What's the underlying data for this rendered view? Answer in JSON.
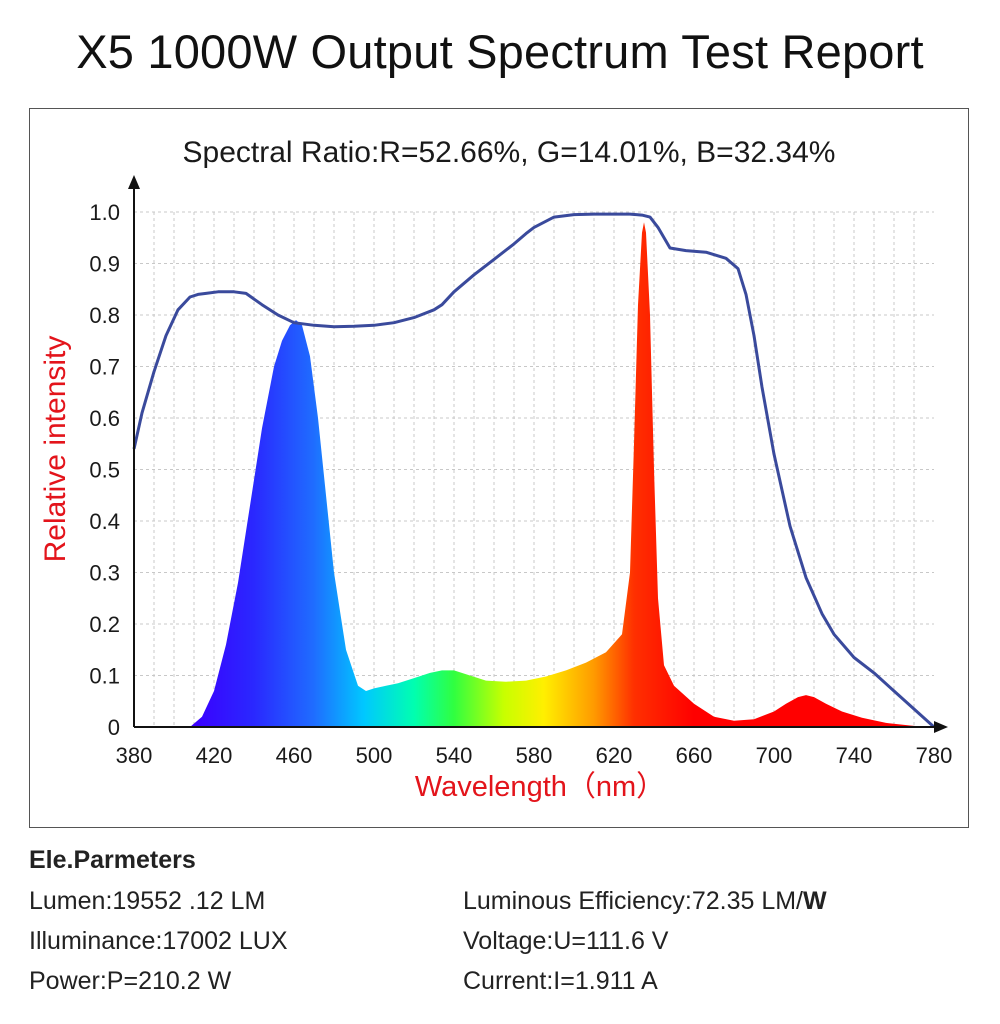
{
  "title": "X5 1000W Output Spectrum Test Report",
  "chart_data": {
    "type": "line",
    "subtitle": "Spectral Ratio:R=52.66%, G=14.01%, B=32.34%",
    "xlabel": "Wavelength（nm）",
    "ylabel": "Relative intensity",
    "xlim": [
      380,
      780
    ],
    "ylim": [
      0,
      1.0
    ],
    "x_ticks": [
      "380",
      "420",
      "460",
      "500",
      "540",
      "580",
      "620",
      "660",
      "700",
      "740",
      "780"
    ],
    "y_ticks": [
      "0",
      "0.1",
      "0.2",
      "0.3",
      "0.4",
      "0.5",
      "0.6",
      "0.7",
      "0.8",
      "0.9",
      "1.0"
    ],
    "grid": true,
    "series": [
      {
        "role": "emission spectrum (filled, rainbow colored)",
        "x": [
          408,
          414,
          420,
          426,
          432,
          438,
          444,
          450,
          454,
          458,
          461,
          464,
          468,
          472,
          476,
          480,
          486,
          492,
          496,
          500,
          506,
          512,
          520,
          528,
          534,
          540,
          548,
          556,
          566,
          576,
          586,
          596,
          606,
          616,
          624,
          628,
          630,
          632,
          634,
          635,
          636,
          638,
          640,
          642,
          645,
          650,
          660,
          670,
          680,
          690,
          700,
          706,
          712,
          716,
          720,
          726,
          734,
          744,
          756,
          768,
          776
        ],
        "y": [
          0.0,
          0.02,
          0.07,
          0.16,
          0.28,
          0.43,
          0.58,
          0.7,
          0.75,
          0.78,
          0.79,
          0.78,
          0.72,
          0.6,
          0.45,
          0.3,
          0.15,
          0.08,
          0.07,
          0.075,
          0.08,
          0.085,
          0.095,
          0.105,
          0.11,
          0.11,
          0.1,
          0.09,
          0.088,
          0.09,
          0.098,
          0.11,
          0.125,
          0.145,
          0.18,
          0.3,
          0.55,
          0.82,
          0.96,
          0.98,
          0.96,
          0.8,
          0.5,
          0.25,
          0.12,
          0.08,
          0.045,
          0.02,
          0.012,
          0.015,
          0.03,
          0.045,
          0.058,
          0.062,
          0.058,
          0.045,
          0.03,
          0.018,
          0.008,
          0.003,
          0.0
        ],
        "color": "#ff0000"
      },
      {
        "role": "relative curve (line)",
        "x": [
          380,
          384,
          390,
          396,
          402,
          408,
          412,
          416,
          422,
          430,
          436,
          444,
          452,
          460,
          470,
          480,
          490,
          500,
          510,
          520,
          530,
          534,
          540,
          550,
          560,
          570,
          576,
          580,
          590,
          600,
          610,
          620,
          628,
          634,
          638,
          642,
          648,
          656,
          666,
          676,
          682,
          686,
          690,
          694,
          700,
          708,
          716,
          724,
          730,
          740,
          750,
          760,
          770,
          780
        ],
        "y": [
          0.54,
          0.61,
          0.69,
          0.76,
          0.81,
          0.835,
          0.84,
          0.842,
          0.845,
          0.845,
          0.842,
          0.82,
          0.8,
          0.785,
          0.78,
          0.777,
          0.778,
          0.78,
          0.785,
          0.795,
          0.81,
          0.82,
          0.845,
          0.878,
          0.908,
          0.938,
          0.958,
          0.97,
          0.99,
          0.995,
          0.996,
          0.996,
          0.996,
          0.994,
          0.99,
          0.97,
          0.93,
          0.925,
          0.922,
          0.91,
          0.89,
          0.84,
          0.76,
          0.66,
          0.53,
          0.39,
          0.29,
          0.22,
          0.18,
          0.135,
          0.105,
          0.07,
          0.035,
          0.0
        ],
        "color": "#3a4a9c"
      }
    ]
  },
  "params": {
    "heading": "Ele.Parmeters",
    "lumen": "Lumen:19552 .12 LM",
    "illuminance": "Illuminance:17002 LUX",
    "power": "Power:P=210.2 W",
    "efficiency_text": "Luminous Efficiency:72.35 LM/",
    "efficiency_unit": "W",
    "voltage": "Voltage:U=111.6 V",
    "current": "Current:I=1.911 A"
  }
}
